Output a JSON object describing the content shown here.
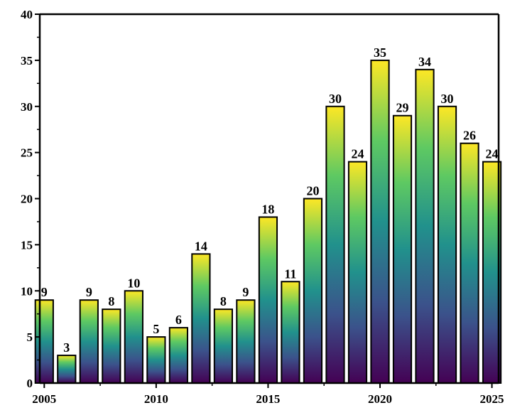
{
  "chart_data": {
    "type": "bar",
    "title": "",
    "xlabel": "",
    "ylabel": "",
    "x": [
      2005,
      2006,
      2007,
      2008,
      2009,
      2010,
      2011,
      2012,
      2013,
      2014,
      2015,
      2016,
      2017,
      2018,
      2019,
      2020,
      2021,
      2022,
      2023,
      2024,
      2025
    ],
    "values": [
      9,
      3,
      9,
      8,
      10,
      5,
      6,
      14,
      8,
      9,
      18,
      11,
      20,
      30,
      24,
      35,
      29,
      34,
      30,
      26,
      24
    ],
    "ylim": [
      0,
      40
    ],
    "xlim": [
      2004.8,
      2025.3
    ],
    "yticks": [
      0,
      5,
      10,
      15,
      20,
      25,
      30,
      35,
      40
    ],
    "xticks": [
      2005,
      2010,
      2015,
      2020,
      2025
    ],
    "grid": false,
    "legend": "none",
    "bar_gradient": [
      "#440154",
      "#3b528b",
      "#21918c",
      "#5ec962",
      "#fde725"
    ],
    "bar_edge_color": "#000000"
  }
}
